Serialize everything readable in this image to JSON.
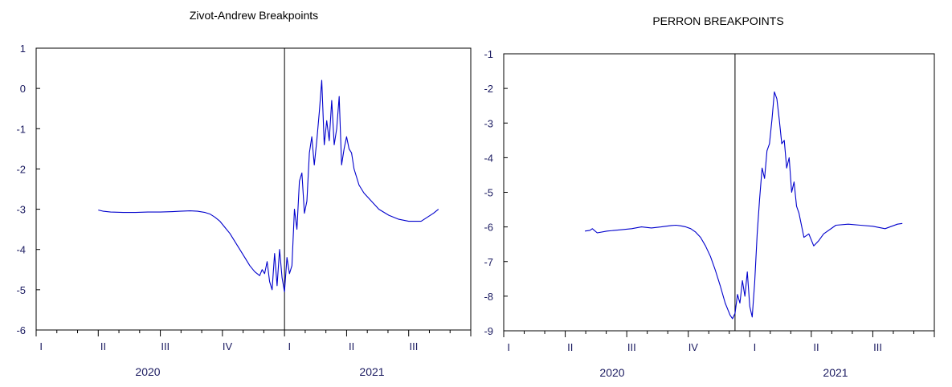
{
  "chart_data": [
    {
      "type": "line",
      "title": "Zivot-Andrew Breakpoints",
      "ylim": [
        -6,
        1
      ],
      "yticks": [
        1,
        0,
        -1,
        -2,
        -3,
        -4,
        -5,
        -6
      ],
      "xlim": [
        2020.0,
        2021.75
      ],
      "x_quarter_labels": [
        "I",
        "II",
        "III",
        "IV",
        "I",
        "II",
        "III"
      ],
      "x_year_labels": [
        "2020",
        "2021"
      ],
      "breakpoint_x": 2021.0,
      "series": [
        {
          "color": "#0000cc",
          "x": [
            2020.25,
            2020.27,
            2020.3,
            2020.35,
            2020.4,
            2020.45,
            2020.5,
            2020.55,
            2020.58,
            2020.62,
            2020.65,
            2020.68,
            2020.7,
            2020.72,
            2020.74,
            2020.76,
            2020.78,
            2020.8,
            2020.82,
            2020.84,
            2020.86,
            2020.88,
            2020.9,
            2020.91,
            2020.92,
            2020.93,
            2020.94,
            2020.95,
            2020.96,
            2020.97,
            2020.98,
            2020.99,
            2021.0,
            2021.01,
            2021.02,
            2021.03,
            2021.04,
            2021.05,
            2021.06,
            2021.07,
            2021.08,
            2021.09,
            2021.1,
            2021.11,
            2021.12,
            2021.13,
            2021.14,
            2021.15,
            2021.16,
            2021.17,
            2021.18,
            2021.19,
            2021.2,
            2021.21,
            2021.22,
            2021.23,
            2021.24,
            2021.25,
            2021.26,
            2021.27,
            2021.28,
            2021.3,
            2021.32,
            2021.35,
            2021.38,
            2021.42,
            2021.46,
            2021.5,
            2021.55,
            2021.6,
            2021.62
          ],
          "y": [
            -3.02,
            -3.05,
            -3.07,
            -3.08,
            -3.08,
            -3.07,
            -3.07,
            -3.06,
            -3.05,
            -3.04,
            -3.05,
            -3.08,
            -3.12,
            -3.2,
            -3.3,
            -3.45,
            -3.6,
            -3.8,
            -4.0,
            -4.2,
            -4.4,
            -4.55,
            -4.65,
            -4.5,
            -4.6,
            -4.3,
            -4.8,
            -5.0,
            -4.1,
            -4.9,
            -4.0,
            -4.7,
            -5.05,
            -4.2,
            -4.6,
            -4.4,
            -3.0,
            -3.5,
            -2.3,
            -2.1,
            -3.1,
            -2.8,
            -1.6,
            -1.2,
            -1.9,
            -1.3,
            -0.6,
            0.2,
            -1.4,
            -0.8,
            -1.3,
            -0.3,
            -1.4,
            -1.0,
            -0.2,
            -1.9,
            -1.5,
            -1.2,
            -1.5,
            -1.6,
            -2.0,
            -2.4,
            -2.6,
            -2.8,
            -3.0,
            -3.15,
            -3.25,
            -3.3,
            -3.3,
            -3.1,
            -3.0
          ]
        }
      ]
    },
    {
      "type": "line",
      "title": "PERRON BREAKPOINTS",
      "ylim": [
        -9,
        -1
      ],
      "yticks": [
        -1,
        -2,
        -3,
        -4,
        -5,
        -6,
        -7,
        -8,
        -9
      ],
      "xlim": [
        2020.0,
        2021.75
      ],
      "x_quarter_labels": [
        "I",
        "II",
        "III",
        "IV",
        "I",
        "II",
        "III"
      ],
      "x_year_labels": [
        "2020",
        "2021"
      ],
      "breakpoint_x": 2020.94,
      "series": [
        {
          "color": "#0000cc",
          "x": [
            2020.33,
            2020.35,
            2020.36,
            2020.38,
            2020.42,
            2020.48,
            2020.52,
            2020.56,
            2020.6,
            2020.64,
            2020.68,
            2020.7,
            2020.72,
            2020.74,
            2020.76,
            2020.78,
            2020.8,
            2020.82,
            2020.84,
            2020.86,
            2020.88,
            2020.9,
            2020.92,
            2020.93,
            2020.94,
            2020.95,
            2020.96,
            2020.97,
            2020.98,
            2020.99,
            2021.0,
            2021.01,
            2021.02,
            2021.03,
            2021.04,
            2021.05,
            2021.06,
            2021.07,
            2021.08,
            2021.09,
            2021.1,
            2021.11,
            2021.12,
            2021.13,
            2021.14,
            2021.15,
            2021.16,
            2021.17,
            2021.18,
            2021.19,
            2021.2,
            2021.22,
            2021.24,
            2021.26,
            2021.28,
            2021.3,
            2021.35,
            2021.4,
            2021.45,
            2021.5,
            2021.55,
            2021.6,
            2021.62
          ],
          "y": [
            -6.12,
            -6.1,
            -6.05,
            -6.17,
            -6.12,
            -6.08,
            -6.05,
            -6.0,
            -6.03,
            -6.0,
            -5.96,
            -5.95,
            -5.97,
            -6.0,
            -6.05,
            -6.15,
            -6.3,
            -6.55,
            -6.85,
            -7.25,
            -7.7,
            -8.2,
            -8.55,
            -8.65,
            -8.5,
            -7.95,
            -8.2,
            -7.55,
            -8.0,
            -7.3,
            -8.3,
            -8.6,
            -7.6,
            -6.2,
            -5.2,
            -4.3,
            -4.6,
            -3.8,
            -3.6,
            -2.9,
            -2.1,
            -2.3,
            -2.9,
            -3.6,
            -3.5,
            -4.3,
            -4.0,
            -5.0,
            -4.7,
            -5.4,
            -5.6,
            -6.3,
            -6.2,
            -6.55,
            -6.4,
            -6.2,
            -5.95,
            -5.92,
            -5.95,
            -5.98,
            -6.05,
            -5.92,
            -5.9
          ]
        }
      ]
    }
  ]
}
